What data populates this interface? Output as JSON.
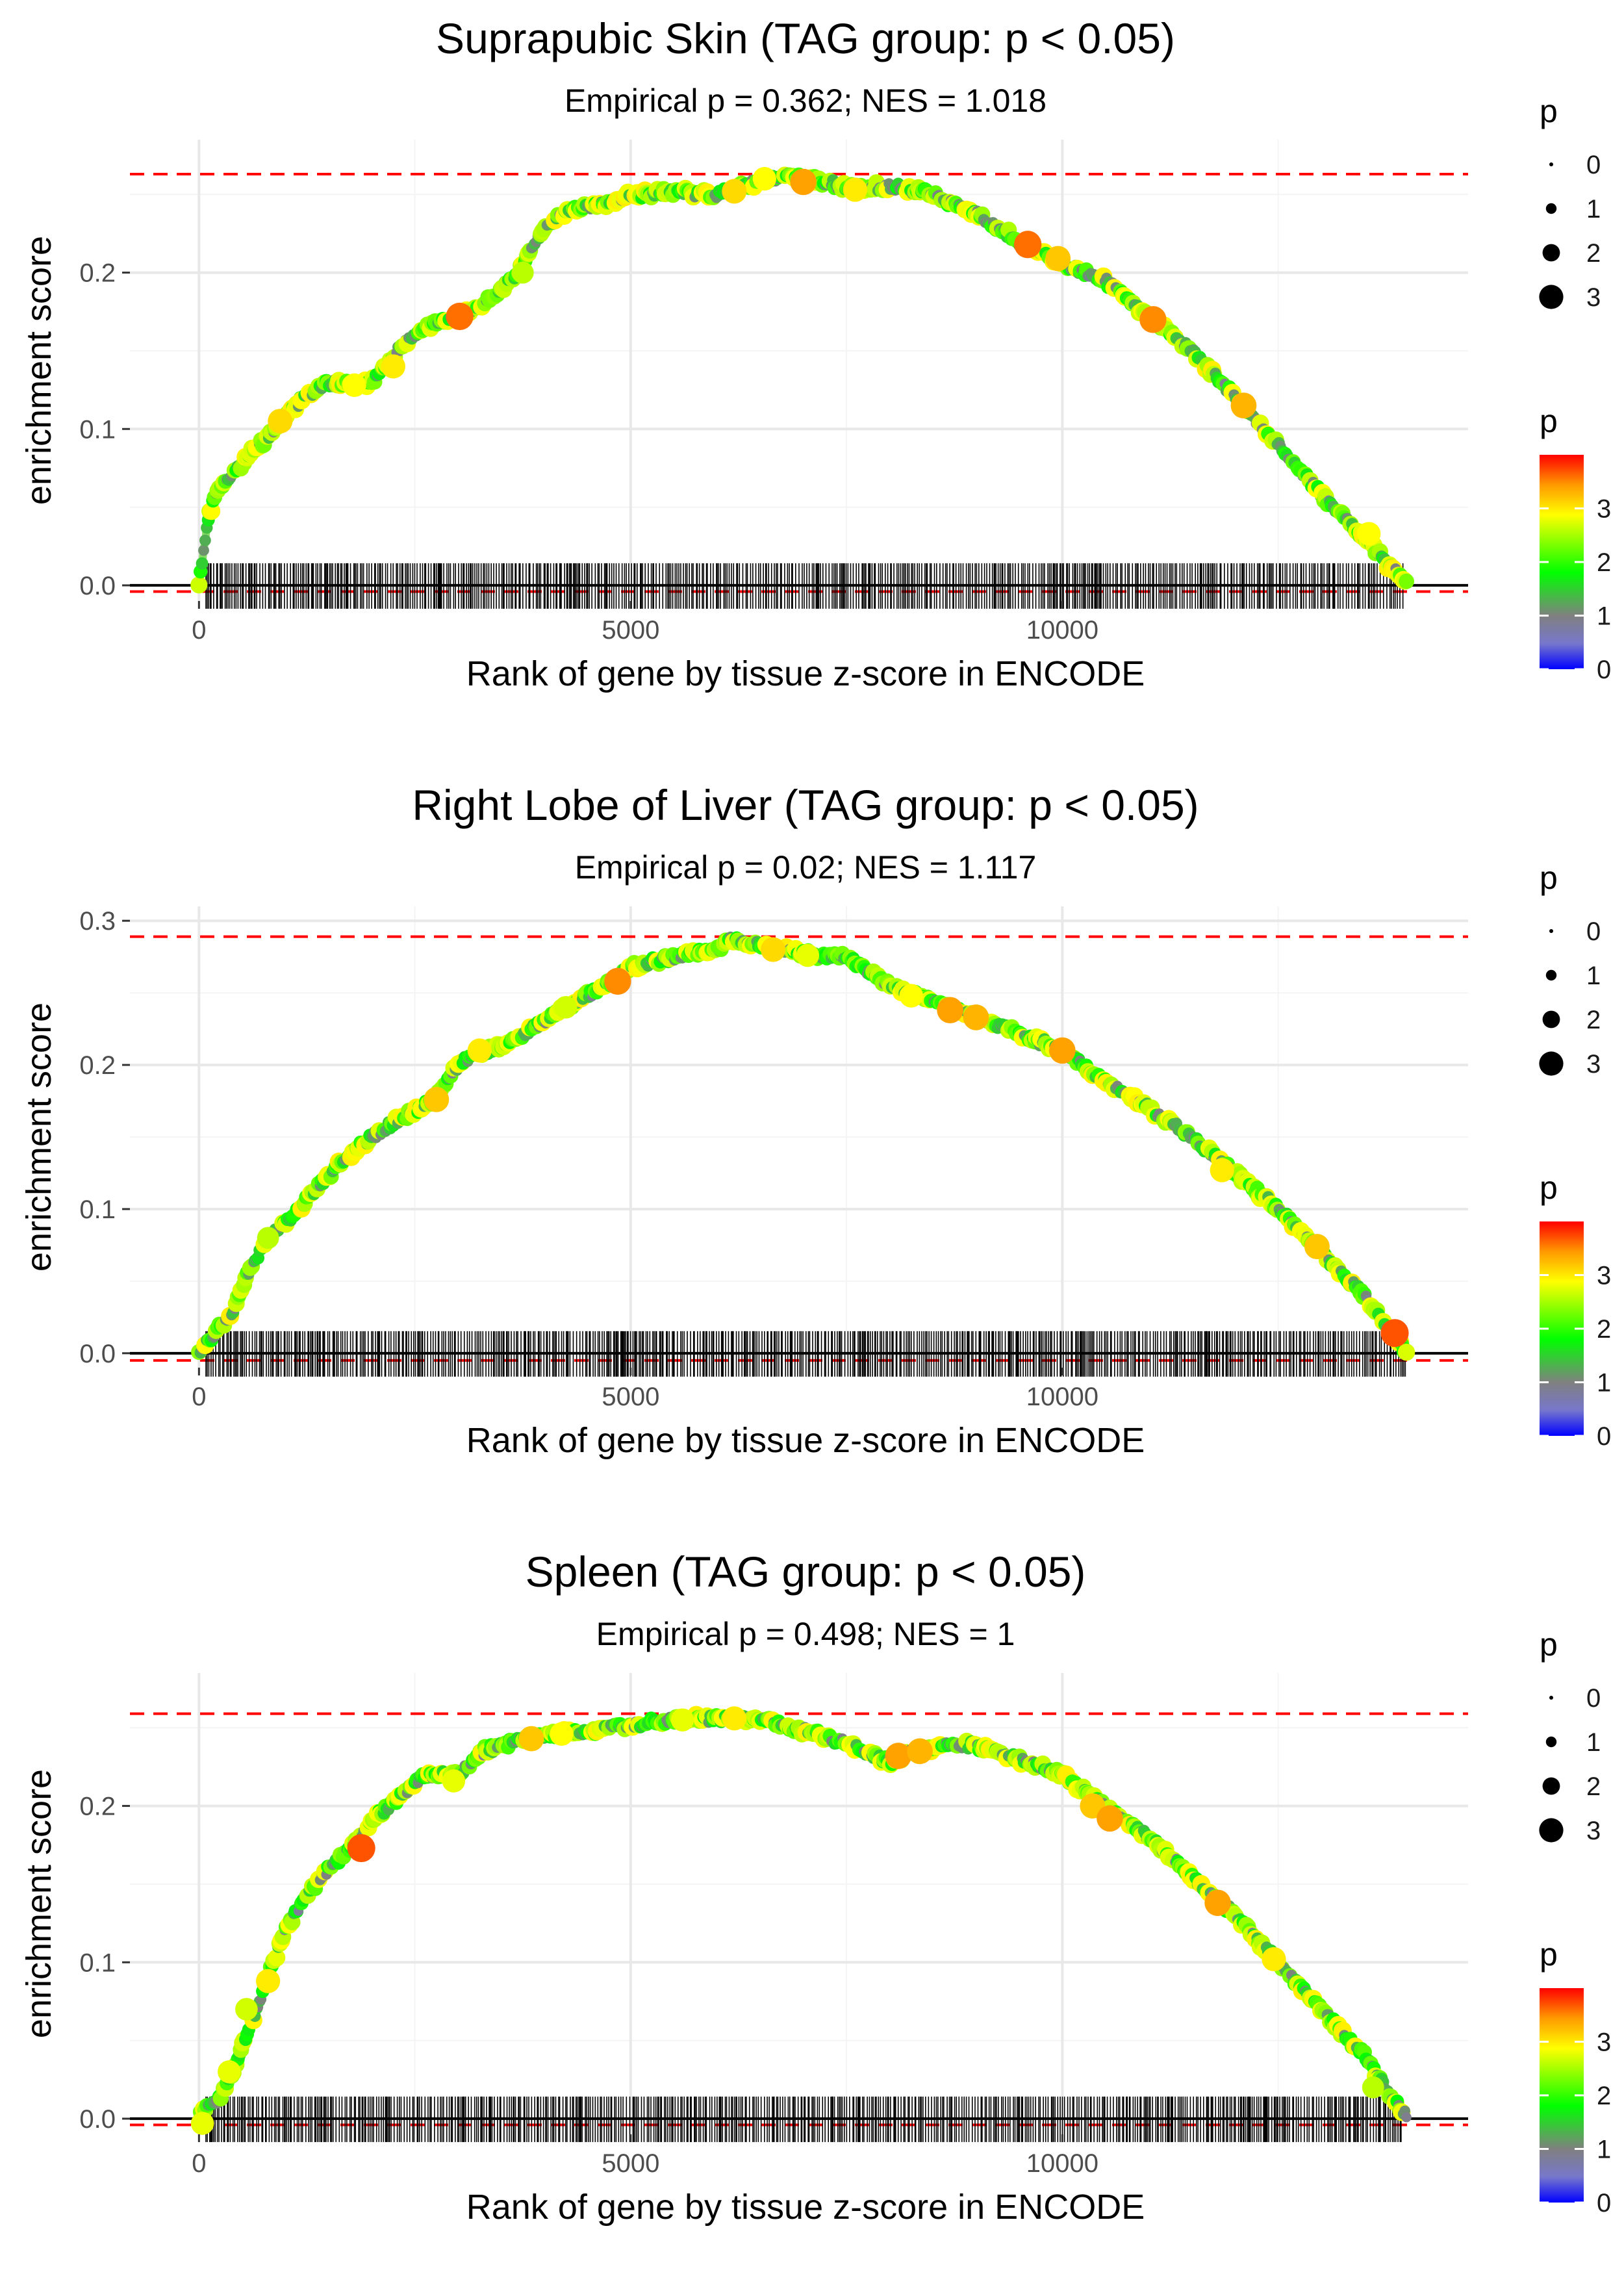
{
  "chart_data": [
    {
      "type": "line",
      "title": "Suprapubic Skin (TAG group: p < 0.05)",
      "subtitle": "Empirical p = 0.362; NES = 1.018",
      "xlabel": "Rank of gene by tissue z-score in ENCODE",
      "ylabel": "enrichment score",
      "xlim": [
        -800,
        14700
      ],
      "ylim": [
        -0.01,
        0.285
      ],
      "xticks": [
        0,
        5000,
        10000
      ],
      "xtick_labels": [
        "0",
        "5000",
        "10000"
      ],
      "yticks": [
        0.0,
        0.1,
        0.2
      ],
      "ytick_labels": [
        "0.0",
        "0.1",
        "0.2"
      ],
      "max_es": 0.263,
      "min_es": -0.004,
      "n_genes": 14000,
      "rug_start": 80,
      "rug_end": 13950,
      "rug_seed": 11,
      "curve": {
        "x": [
          0,
          100,
          200,
          400,
          700,
          900,
          1200,
          1500,
          1800,
          2000,
          2300,
          2600,
          3000,
          3300,
          3700,
          4000,
          4300,
          4800,
          5000,
          5500,
          6000,
          6500,
          6800,
          7000,
          7500,
          8000,
          8500,
          9000,
          9500,
          10000,
          10500,
          11000,
          11500,
          12000,
          12500,
          13000,
          13500,
          13800,
          14000
        ],
        "y": [
          0.0,
          0.04,
          0.06,
          0.072,
          0.09,
          0.1,
          0.12,
          0.13,
          0.128,
          0.13,
          0.15,
          0.165,
          0.172,
          0.18,
          0.2,
          0.23,
          0.24,
          0.245,
          0.25,
          0.252,
          0.25,
          0.258,
          0.263,
          0.26,
          0.255,
          0.255,
          0.25,
          0.238,
          0.22,
          0.205,
          0.195,
          0.172,
          0.15,
          0.12,
          0.09,
          0.058,
          0.03,
          0.012,
          0.0
        ]
      },
      "highlights": [
        {
          "x": 3020,
          "y": 0.172,
          "p": 3.6
        },
        {
          "x": 1800,
          "y": 0.128,
          "p": 2.9
        },
        {
          "x": 2250,
          "y": 0.14,
          "p": 3.0
        },
        {
          "x": 940,
          "y": 0.105,
          "p": 3.1
        },
        {
          "x": 3750,
          "y": 0.2,
          "p": 2.6
        },
        {
          "x": 6200,
          "y": 0.252,
          "p": 3.1
        },
        {
          "x": 6550,
          "y": 0.26,
          "p": 2.9
        },
        {
          "x": 7000,
          "y": 0.258,
          "p": 3.4
        },
        {
          "x": 7600,
          "y": 0.253,
          "p": 3.0
        },
        {
          "x": 9600,
          "y": 0.218,
          "p": 3.6
        },
        {
          "x": 9950,
          "y": 0.209,
          "p": 3.2
        },
        {
          "x": 11050,
          "y": 0.17,
          "p": 3.5
        },
        {
          "x": 12100,
          "y": 0.115,
          "p": 3.3
        },
        {
          "x": 13550,
          "y": 0.033,
          "p": 2.9
        }
      ],
      "legend_size_title": "p",
      "legend_size_labels": [
        "0",
        "1",
        "2",
        "3"
      ],
      "legend_color_title": "p",
      "legend_color_labels": [
        "3",
        "2",
        "1",
        "0"
      ]
    },
    {
      "type": "line",
      "title": "Right Lobe of Liver (TAG group: p < 0.05)",
      "subtitle": "Empirical p = 0.02; NES = 1.117",
      "xlabel": "Rank of gene by tissue z-score in ENCODE",
      "ylabel": "enrichment score",
      "xlim": [
        -800,
        14700
      ],
      "ylim": [
        -0.01,
        0.31
      ],
      "xticks": [
        0,
        5000,
        10000
      ],
      "xtick_labels": [
        "0",
        "5000",
        "10000"
      ],
      "yticks": [
        0.0,
        0.1,
        0.2,
        0.3
      ],
      "ytick_labels": [
        "0.0",
        "0.1",
        "0.2",
        "0.3"
      ],
      "max_es": 0.289,
      "min_es": -0.005,
      "n_genes": 14000,
      "rug_start": 80,
      "rug_end": 14000,
      "rug_seed": 23,
      "curve": {
        "x": [
          0,
          200,
          400,
          600,
          800,
          1000,
          1300,
          1600,
          2000,
          2400,
          2700,
          3000,
          3300,
          3600,
          4000,
          4400,
          4800,
          5000,
          5500,
          6000,
          6200,
          6500,
          7000,
          7500,
          8000,
          8500,
          9000,
          9500,
          10000,
          10500,
          11000,
          11500,
          12000,
          12500,
          13000,
          13500,
          13800,
          14000
        ],
        "y": [
          0.0,
          0.015,
          0.03,
          0.06,
          0.08,
          0.09,
          0.11,
          0.13,
          0.15,
          0.165,
          0.175,
          0.2,
          0.21,
          0.215,
          0.23,
          0.245,
          0.258,
          0.268,
          0.275,
          0.28,
          0.288,
          0.283,
          0.277,
          0.275,
          0.255,
          0.245,
          0.233,
          0.222,
          0.21,
          0.188,
          0.17,
          0.15,
          0.125,
          0.1,
          0.07,
          0.04,
          0.015,
          0.0
        ]
      },
      "highlights": [
        {
          "x": 2750,
          "y": 0.176,
          "p": 3.2
        },
        {
          "x": 4850,
          "y": 0.258,
          "p": 3.5
        },
        {
          "x": 3250,
          "y": 0.21,
          "p": 3.0
        },
        {
          "x": 4250,
          "y": 0.24,
          "p": 2.7
        },
        {
          "x": 6650,
          "y": 0.28,
          "p": 3.1
        },
        {
          "x": 7050,
          "y": 0.276,
          "p": 2.8
        },
        {
          "x": 8250,
          "y": 0.248,
          "p": 2.9
        },
        {
          "x": 8700,
          "y": 0.238,
          "p": 3.4
        },
        {
          "x": 9000,
          "y": 0.233,
          "p": 3.3
        },
        {
          "x": 10000,
          "y": 0.21,
          "p": 3.4
        },
        {
          "x": 11850,
          "y": 0.127,
          "p": 3.0
        },
        {
          "x": 12950,
          "y": 0.074,
          "p": 3.2
        },
        {
          "x": 13850,
          "y": 0.014,
          "p": 3.7
        },
        {
          "x": 800,
          "y": 0.08,
          "p": 2.6
        }
      ],
      "legend_size_title": "p",
      "legend_size_labels": [
        "0",
        "1",
        "2",
        "3"
      ],
      "legend_color_title": "p",
      "legend_color_labels": [
        "3",
        "2",
        "1",
        "0"
      ]
    },
    {
      "type": "line",
      "title": "Spleen (TAG group: p < 0.05)",
      "subtitle": "Empirical p = 0.498; NES = 1",
      "xlabel": "Rank of gene by tissue z-score in ENCODE",
      "ylabel": "enrichment score",
      "xlim": [
        -800,
        14700
      ],
      "ylim": [
        -0.01,
        0.285
      ],
      "xticks": [
        0,
        5000,
        10000
      ],
      "xtick_labels": [
        "0",
        "5000",
        "10000"
      ],
      "yticks": [
        0.0,
        0.1,
        0.2
      ],
      "ytick_labels": [
        "0.0",
        "0.1",
        "0.2"
      ],
      "max_es": 0.259,
      "min_es": -0.004,
      "n_genes": 14000,
      "rug_start": 80,
      "rug_end": 13950,
      "rug_seed": 37,
      "curve": {
        "x": [
          0,
          200,
          400,
          600,
          800,
          1000,
          1200,
          1500,
          1800,
          2000,
          2300,
          2600,
          3000,
          3300,
          3600,
          4000,
          4500,
          5000,
          5500,
          6000,
          6500,
          7000,
          7500,
          8000,
          8300,
          8700,
          9000,
          9500,
          10000,
          10500,
          11000,
          11500,
          12000,
          12500,
          13000,
          13500,
          13800,
          14000
        ],
        "y": [
          0.005,
          0.01,
          0.03,
          0.06,
          0.09,
          0.12,
          0.14,
          0.16,
          0.175,
          0.19,
          0.205,
          0.22,
          0.22,
          0.235,
          0.24,
          0.245,
          0.248,
          0.252,
          0.255,
          0.256,
          0.255,
          0.248,
          0.24,
          0.228,
          0.235,
          0.24,
          0.238,
          0.23,
          0.22,
          0.2,
          0.18,
          0.155,
          0.13,
          0.1,
          0.07,
          0.04,
          0.015,
          0.0
        ]
      },
      "highlights": [
        {
          "x": 1880,
          "y": 0.173,
          "p": 3.7
        },
        {
          "x": 800,
          "y": 0.088,
          "p": 3.0
        },
        {
          "x": 550,
          "y": 0.07,
          "p": 2.7
        },
        {
          "x": 350,
          "y": 0.03,
          "p": 2.8
        },
        {
          "x": 2950,
          "y": 0.216,
          "p": 2.8
        },
        {
          "x": 3850,
          "y": 0.243,
          "p": 3.2
        },
        {
          "x": 4200,
          "y": 0.246,
          "p": 2.9
        },
        {
          "x": 5600,
          "y": 0.255,
          "p": 2.8
        },
        {
          "x": 6200,
          "y": 0.256,
          "p": 3.0
        },
        {
          "x": 8100,
          "y": 0.232,
          "p": 3.4
        },
        {
          "x": 8350,
          "y": 0.235,
          "p": 3.3
        },
        {
          "x": 10350,
          "y": 0.2,
          "p": 3.2
        },
        {
          "x": 10550,
          "y": 0.192,
          "p": 3.4
        },
        {
          "x": 11800,
          "y": 0.138,
          "p": 3.4
        },
        {
          "x": 12450,
          "y": 0.102,
          "p": 3.0
        },
        {
          "x": 13600,
          "y": 0.02,
          "p": 2.6
        },
        {
          "x": 40,
          "y": -0.003,
          "p": 2.8
        }
      ],
      "legend_size_title": "p",
      "legend_size_labels": [
        "0",
        "1",
        "2",
        "3"
      ],
      "legend_color_title": "p",
      "legend_color_labels": [
        "3",
        "2",
        "1",
        "0"
      ]
    }
  ]
}
